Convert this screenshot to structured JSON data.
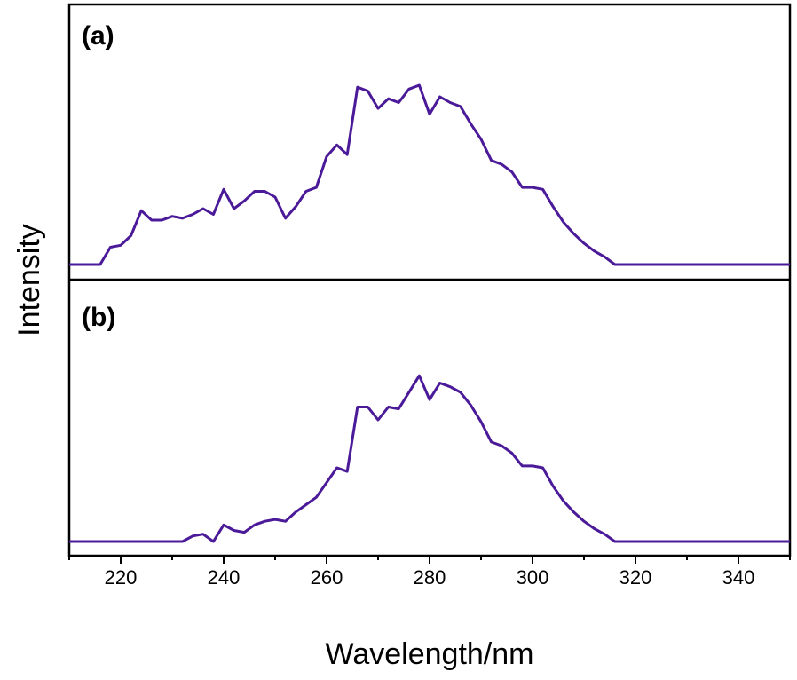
{
  "colors": {
    "line": "#4B1A99",
    "axis": "#000000",
    "background": "#ffffff"
  },
  "chart_data": {
    "type": "line",
    "xlabel": "Wavelength/nm",
    "ylabel": "Intensity",
    "xlim": [
      210,
      350
    ],
    "ylim": [
      0,
      1.0
    ],
    "xticks": [
      220,
      240,
      260,
      280,
      300,
      320,
      340
    ],
    "yticks_shown": false,
    "grid": false,
    "legend": "none",
    "panels": [
      {
        "label": "(a)",
        "series": [
          {
            "x": [
              210,
              216,
              218,
              220,
              222,
              224,
              226,
              228,
              230,
              232,
              234,
              236,
              238,
              240,
              242,
              244,
              246,
              248,
              250,
              252,
              254,
              256,
              258,
              260,
              262,
              264,
              266,
              268,
              270,
              272,
              274,
              276,
              278,
              280,
              282,
              284,
              286,
              288,
              290,
              292,
              294,
              296,
              298,
              300,
              302,
              304,
              306,
              308,
              310,
              312,
              314,
              316,
              318,
              320,
              350
            ],
            "y": [
              0.0,
              0.0,
              0.09,
              0.1,
              0.15,
              0.28,
              0.23,
              0.23,
              0.25,
              0.24,
              0.26,
              0.29,
              0.26,
              0.39,
              0.29,
              0.33,
              0.38,
              0.38,
              0.35,
              0.24,
              0.3,
              0.38,
              0.4,
              0.56,
              0.62,
              0.57,
              0.92,
              0.9,
              0.81,
              0.86,
              0.84,
              0.91,
              0.93,
              0.78,
              0.87,
              0.84,
              0.82,
              0.73,
              0.65,
              0.54,
              0.52,
              0.48,
              0.4,
              0.4,
              0.39,
              0.3,
              0.22,
              0.16,
              0.11,
              0.07,
              0.04,
              0.0,
              0.0,
              0.0,
              0.0
            ]
          }
        ]
      },
      {
        "label": "(b)",
        "series": [
          {
            "x": [
              210,
              232,
              234,
              236,
              238,
              240,
              242,
              244,
              246,
              248,
              250,
              252,
              254,
              256,
              258,
              260,
              262,
              264,
              266,
              268,
              270,
              272,
              274,
              276,
              278,
              280,
              282,
              284,
              286,
              288,
              290,
              292,
              294,
              296,
              298,
              300,
              302,
              304,
              306,
              308,
              310,
              312,
              314,
              316,
              318,
              320,
              350
            ],
            "y": [
              0.0,
              0.0,
              0.03,
              0.04,
              0.0,
              0.09,
              0.06,
              0.05,
              0.09,
              0.11,
              0.12,
              0.11,
              0.16,
              0.2,
              0.24,
              0.32,
              0.4,
              0.38,
              0.73,
              0.73,
              0.66,
              0.73,
              0.72,
              0.81,
              0.9,
              0.77,
              0.86,
              0.84,
              0.81,
              0.74,
              0.65,
              0.54,
              0.52,
              0.48,
              0.41,
              0.41,
              0.4,
              0.3,
              0.22,
              0.16,
              0.11,
              0.07,
              0.04,
              0.0,
              0.0,
              0.0,
              0.0
            ]
          }
        ]
      }
    ]
  }
}
